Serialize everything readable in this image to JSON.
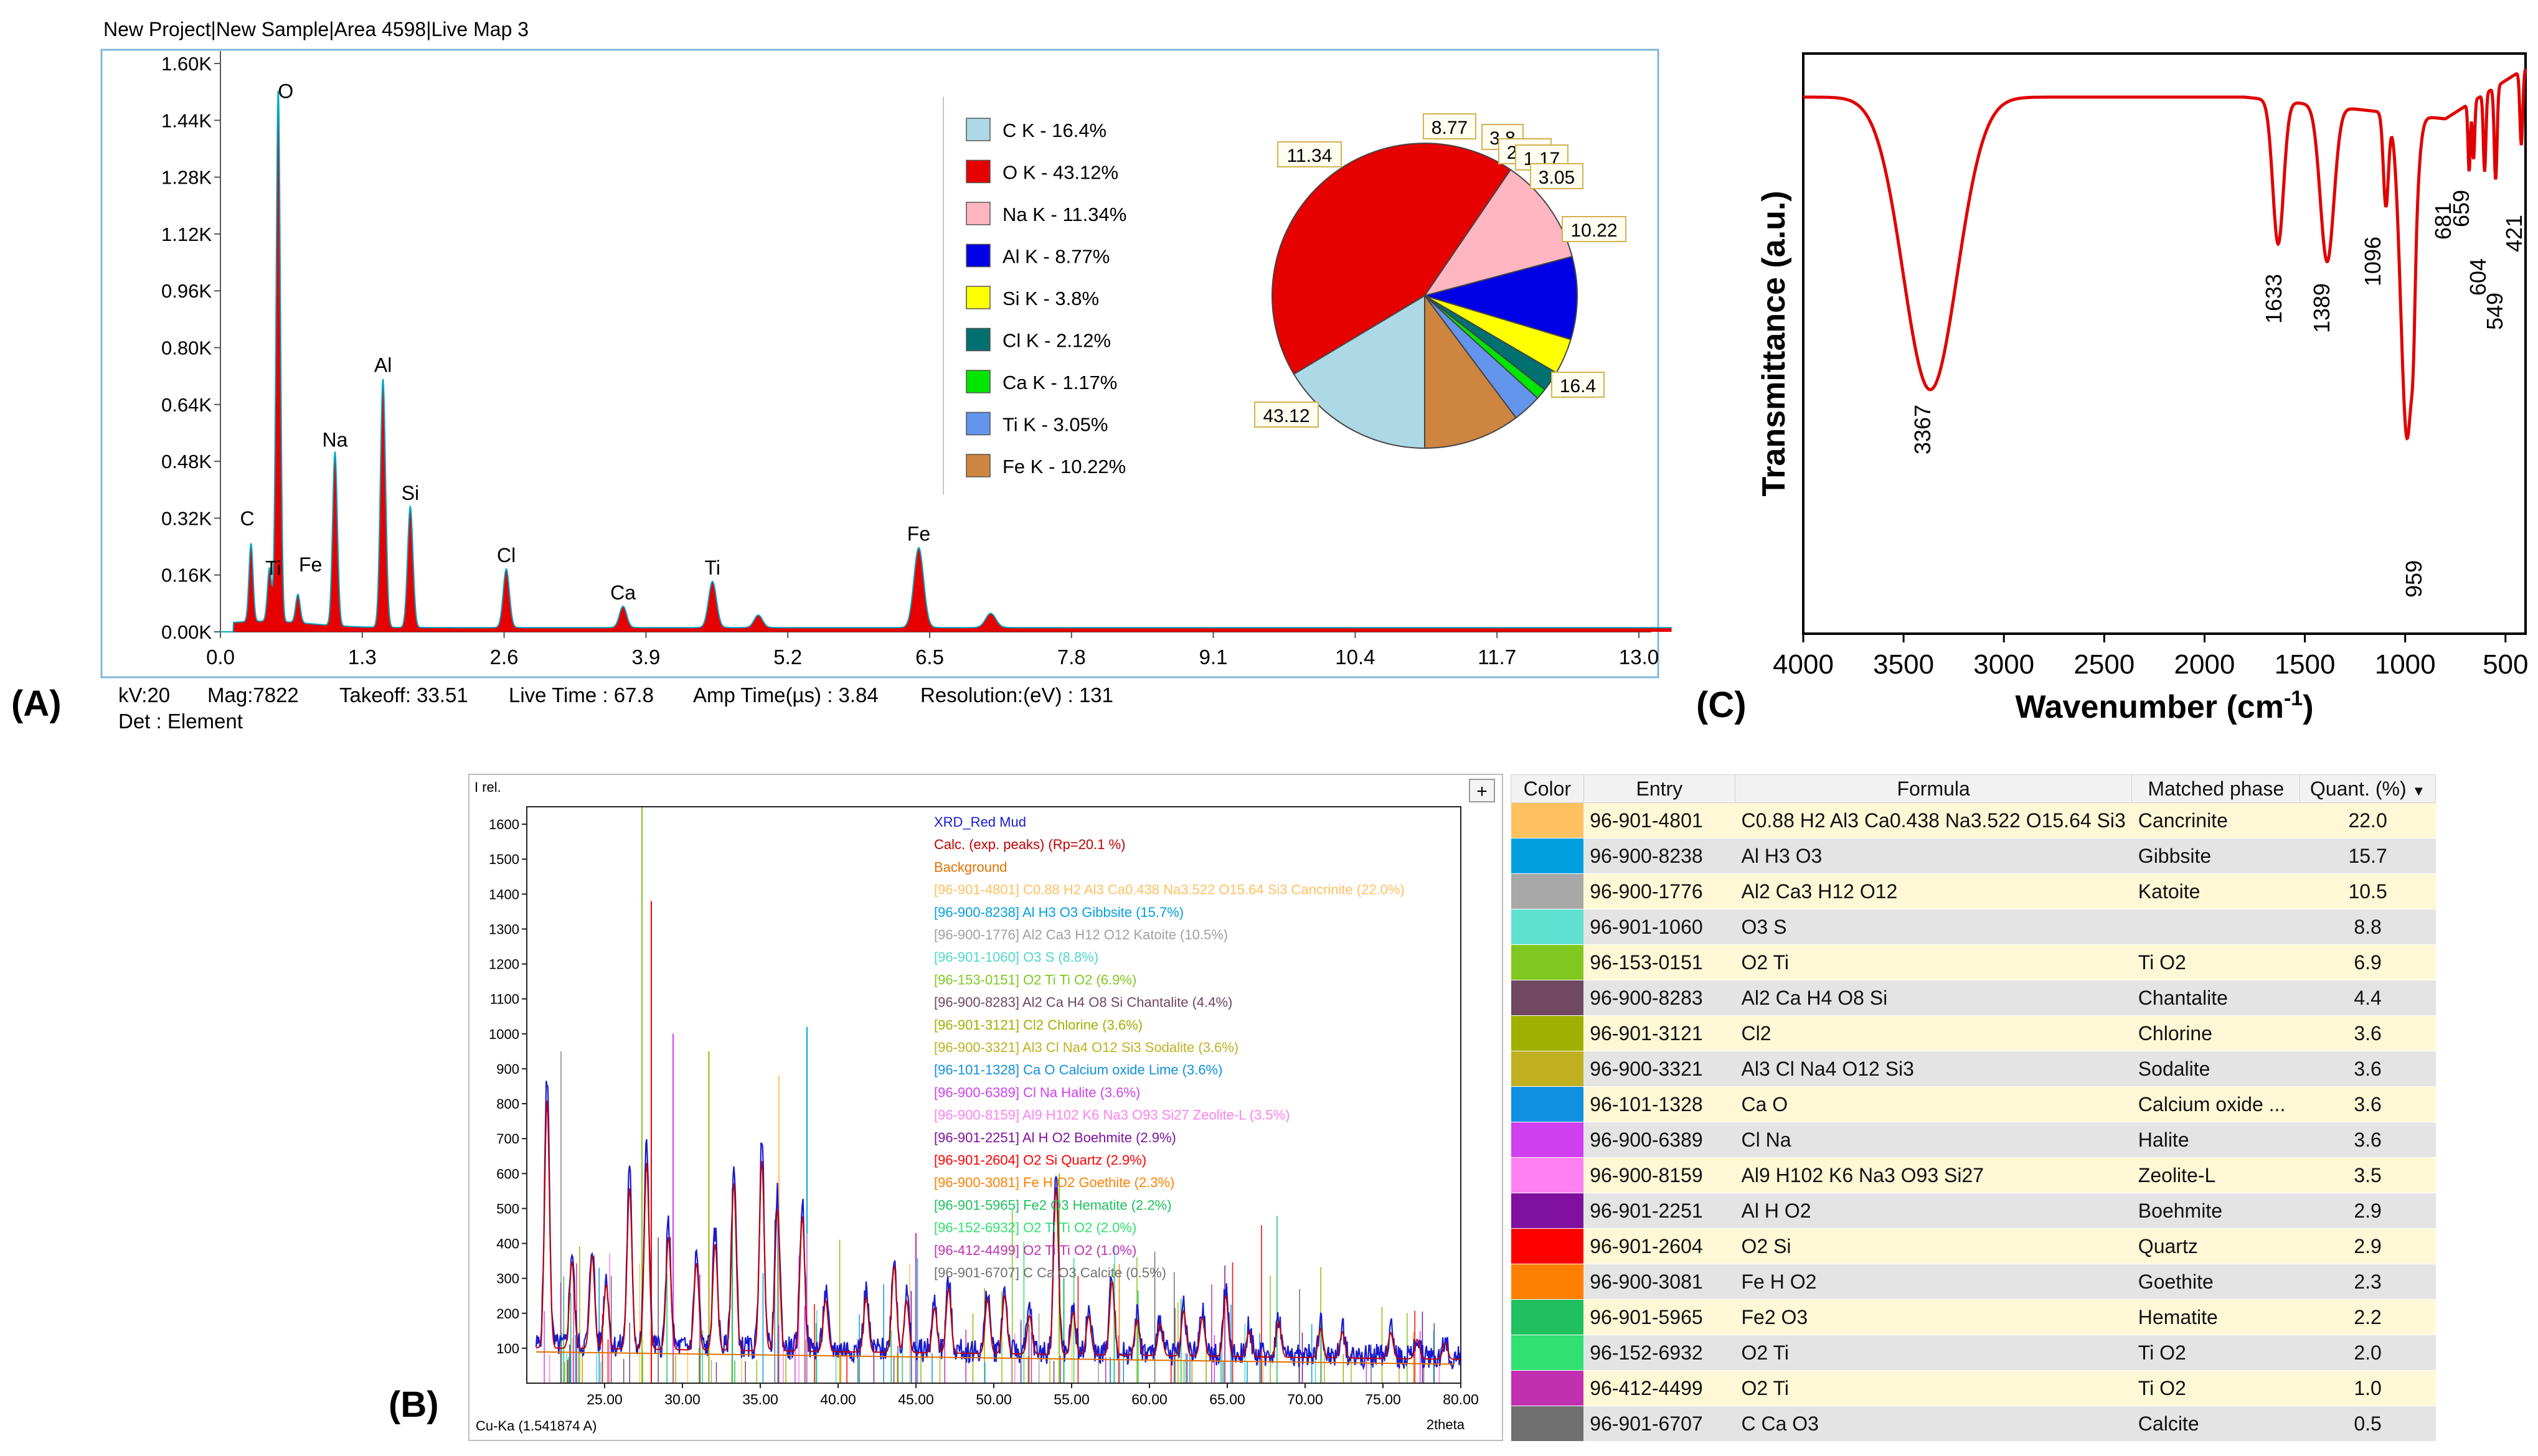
{
  "panels": {
    "a": "(A)",
    "b": "(B)",
    "c": "(C)"
  },
  "eds": {
    "header": "New Project|New Sample|Area 4598|Live Map 3",
    "info_line1": [
      "kV:20",
      "Mag:7822",
      "Takeoff: 33.51",
      "Live Time : 67.8",
      "Amp Time(µs) : 3.84",
      "Resolution:(eV) : 131"
    ],
    "info_line2": "Det : Element",
    "y_ticks": [
      "0.00K",
      "0.16K",
      "0.32K",
      "0.48K",
      "0.64K",
      "0.80K",
      "0.96K",
      "1.12K",
      "1.28K",
      "1.44K",
      "1.60K"
    ],
    "x_ticks": [
      "0.0",
      "1.3",
      "2.6",
      "3.9",
      "5.2",
      "6.5",
      "7.8",
      "9.1",
      "10.4",
      "11.7",
      "13.0"
    ],
    "pie_labels": [
      "16.4",
      "43.12",
      "11.34",
      "8.77",
      "3.8",
      "2.12",
      "1.17",
      "3.05",
      "10.22"
    ],
    "colors": {
      "peak_fill": "#e60000",
      "frame": "#7fb8d8",
      "trace": "#00a8c8"
    }
  },
  "chart_data": [
    {
      "type": "area",
      "title": "",
      "xlabel": "",
      "ylabel": "",
      "xlim": [
        0,
        13.3
      ],
      "ylim": [
        0,
        1600
      ],
      "peaks": [
        {
          "label": "C",
          "x": 0.28,
          "y": 220
        },
        {
          "label": "O",
          "x": 0.53,
          "y": 1500
        },
        {
          "label": "Ti",
          "x": 0.45,
          "y": 150
        },
        {
          "label": "Fe",
          "x": 0.71,
          "y": 80
        },
        {
          "label": "Na",
          "x": 1.05,
          "y": 490
        },
        {
          "label": "Al",
          "x": 1.49,
          "y": 700
        },
        {
          "label": "Si",
          "x": 1.74,
          "y": 340
        },
        {
          "label": "Cl",
          "x": 2.62,
          "y": 165
        },
        {
          "label": "Ca",
          "x": 3.69,
          "y": 60
        },
        {
          "label": "Ti",
          "x": 4.51,
          "y": 130
        },
        {
          "label": "Fe",
          "x": 6.4,
          "y": 225
        }
      ],
      "minor_peaks_unlabeled": [
        {
          "x": 4.93,
          "y": 35
        },
        {
          "x": 7.06,
          "y": 40
        }
      ]
    },
    {
      "type": "pie",
      "title": "",
      "legend_position": "left",
      "slices": [
        {
          "label": "C  K - 16.4%",
          "value": 16.4,
          "color": "#add8e6"
        },
        {
          "label": "O  K - 43.12%",
          "value": 43.12,
          "color": "#e60000"
        },
        {
          "label": "Na K - 11.34%",
          "value": 11.34,
          "color": "#ffb6c1"
        },
        {
          "label": "Al K - 8.77%",
          "value": 8.77,
          "color": "#0000e6"
        },
        {
          "label": "Si K - 3.8%",
          "value": 3.8,
          "color": "#ffff00"
        },
        {
          "label": "Cl K - 2.12%",
          "value": 2.12,
          "color": "#007070"
        },
        {
          "label": "Ca K - 1.17%",
          "value": 1.17,
          "color": "#00e600"
        },
        {
          "label": "Ti K - 3.05%",
          "value": 3.05,
          "color": "#6495ed"
        },
        {
          "label": "Fe K - 10.22%",
          "value": 10.22,
          "color": "#cd853f"
        }
      ]
    },
    {
      "type": "line",
      "title": "",
      "xlabel": "Wavenumber (cm",
      "xlabel_sup": "-1",
      "xlabel_end": ")",
      "ylabel": "Transmittance (a.u.)",
      "xlim": [
        4000,
        400
      ],
      "x_reversed": true,
      "x_ticks": [
        "4000",
        "3500",
        "3000",
        "2500",
        "2000",
        "1500",
        "1000",
        "500"
      ],
      "line_color": "#e00000",
      "bands": [
        {
          "label": "3367",
          "x": 3367
        },
        {
          "label": "1633",
          "x": 1633
        },
        {
          "label": "1389",
          "x": 1389
        },
        {
          "label": "1096",
          "x": 1096
        },
        {
          "label": "959",
          "x": 959
        },
        {
          "label": "681",
          "x": 681
        },
        {
          "label": "659",
          "x": 659
        },
        {
          "label": "604",
          "x": 604
        },
        {
          "label": "549",
          "x": 549
        },
        {
          "label": "421",
          "x": 421
        }
      ]
    },
    {
      "type": "line",
      "title": "",
      "ylabel": "I rel.",
      "xlabel": "2theta",
      "source": "Cu-Ka (1.541874 A)",
      "xlim": [
        20,
        80
      ],
      "ylim": [
        0,
        1650
      ],
      "x_ticks": [
        "25.00",
        "30.00",
        "35.00",
        "40.00",
        "45.00",
        "50.00",
        "55.00",
        "60.00",
        "65.00",
        "70.00",
        "75.00",
        "80.00"
      ],
      "y_ticks": [
        "100",
        "200",
        "300",
        "400",
        "500",
        "600",
        "700",
        "800",
        "900",
        "1000",
        "1100",
        "1200",
        "1300",
        "1400",
        "1500",
        "1600"
      ],
      "legend": [
        {
          "text": "XRD_Red Mud",
          "color": "#1a1ad0"
        },
        {
          "text": "Calc. (exp. peaks) (Rp=20.1 %)",
          "color": "#c00000"
        },
        {
          "text": "Background",
          "color": "#e07000"
        },
        {
          "text": "[96-901-4801] C0.88 H2 Al3 Ca0.438 Na3.522 O15.64 Si3  Cancrinite (22.0%)",
          "color": "#ffc060"
        },
        {
          "text": "[96-900-8238] Al H3 O3  Gibbsite (15.7%)",
          "color": "#00a0e0"
        },
        {
          "text": "[96-900-1776] Al2 Ca3 H12 O12  Katoite (10.5%)",
          "color": "#a0a0a0"
        },
        {
          "text": "[96-901-1060] O3 S  (8.8%)",
          "color": "#50d8c8"
        },
        {
          "text": "[96-153-0151] O2 Ti Ti O2 (6.9%)",
          "color": "#80c820"
        },
        {
          "text": "[96-900-8283] Al2 Ca H4 O8 Si  Chantalite (4.4%)",
          "color": "#704860"
        },
        {
          "text": "[96-901-3121] Cl2 Chlorine (3.6%)",
          "color": "#a0b000"
        },
        {
          "text": "[96-900-3321] Al3 Cl Na4 O12 Si3  Sodalite (3.6%)",
          "color": "#c0b020"
        },
        {
          "text": "[96-101-1328] Ca O  Calcium oxide Lime (3.6%)",
          "color": "#1090e0"
        },
        {
          "text": "[96-900-6389] Cl Na  Halite (3.6%)",
          "color": "#d040f0"
        },
        {
          "text": "[96-900-8159] Al9 H102 K6 Na3 O93 Si27  Zeolite-L (3.5%)",
          "color": "#ff80f0"
        },
        {
          "text": "[96-901-2251] Al H O2  Boehmite (2.9%)",
          "color": "#8010a0"
        },
        {
          "text": "[96-901-2604] O2 Si  Quartz (2.9%)",
          "color": "#ff0000"
        },
        {
          "text": "[96-900-3081] Fe H O2  Goethite (2.3%)",
          "color": "#ff8000"
        },
        {
          "text": "[96-901-5965] Fe2 O3  Hematite (2.2%)",
          "color": "#20c060"
        },
        {
          "text": "[96-152-6932] O2 Ti Ti O2 (2.0%)",
          "color": "#30e070"
        },
        {
          "text": "[96-412-4499] O2 Ti Ti O2 (1.0%)",
          "color": "#c030b0"
        },
        {
          "text": "[96-901-6707] C Ca O3  Calcite (0.5%)",
          "color": "#707070"
        }
      ],
      "plus_button": "+"
    },
    {
      "type": "table",
      "columns": [
        "Color",
        "Entry",
        "Formula",
        "Matched phase",
        "Quant. (%)"
      ],
      "sort_indicator": "▼",
      "rows": [
        {
          "color": "#ffc060",
          "entry": "96-901-4801",
          "formula": "C0.88 H2 Al3 Ca0.438 Na3.522 O15.64 Si3",
          "phase": "Cancrinite",
          "quant": "22.0"
        },
        {
          "color": "#00a0e0",
          "entry": "96-900-8238",
          "formula": "Al H3 O3",
          "phase": "Gibbsite",
          "quant": "15.7"
        },
        {
          "color": "#a8a8a8",
          "entry": "96-900-1776",
          "formula": "Al2 Ca3 H12 O12",
          "phase": "Katoite",
          "quant": "10.5"
        },
        {
          "color": "#60e0d0",
          "entry": "96-901-1060",
          "formula": "O3 S",
          "phase": "",
          "quant": "8.8"
        },
        {
          "color": "#80c820",
          "entry": "96-153-0151",
          "formula": "O2 Ti",
          "phase": "Ti O2",
          "quant": "6.9"
        },
        {
          "color": "#704860",
          "entry": "96-900-8283",
          "formula": "Al2 Ca H4 O8 Si",
          "phase": "Chantalite",
          "quant": "4.4"
        },
        {
          "color": "#a0b000",
          "entry": "96-901-3121",
          "formula": "Cl2",
          "phase": "Chlorine",
          "quant": "3.6"
        },
        {
          "color": "#c0b020",
          "entry": "96-900-3321",
          "formula": "Al3 Cl Na4 O12 Si3",
          "phase": "Sodalite",
          "quant": "3.6"
        },
        {
          "color": "#1090e0",
          "entry": "96-101-1328",
          "formula": "Ca O",
          "phase": "Calcium oxide ...",
          "quant": "3.6"
        },
        {
          "color": "#d040f0",
          "entry": "96-900-6389",
          "formula": "Cl Na",
          "phase": "Halite",
          "quant": "3.6"
        },
        {
          "color": "#ff80f0",
          "entry": "96-900-8159",
          "formula": "Al9 H102 K6 Na3 O93 Si27",
          "phase": "Zeolite-L",
          "quant": "3.5"
        },
        {
          "color": "#8010a0",
          "entry": "96-901-2251",
          "formula": "Al H O2",
          "phase": "Boehmite",
          "quant": "2.9"
        },
        {
          "color": "#ff0000",
          "entry": "96-901-2604",
          "formula": "O2 Si",
          "phase": "Quartz",
          "quant": "2.9"
        },
        {
          "color": "#ff8000",
          "entry": "96-900-3081",
          "formula": "Fe H O2",
          "phase": "Goethite",
          "quant": "2.3"
        },
        {
          "color": "#20c060",
          "entry": "96-901-5965",
          "formula": "Fe2 O3",
          "phase": "Hematite",
          "quant": "2.2"
        },
        {
          "color": "#30e070",
          "entry": "96-152-6932",
          "formula": "O2 Ti",
          "phase": "Ti O2",
          "quant": "2.0"
        },
        {
          "color": "#c030b0",
          "entry": "96-412-4499",
          "formula": "O2 Ti",
          "phase": "Ti O2",
          "quant": "1.0"
        },
        {
          "color": "#707070",
          "entry": "96-901-6707",
          "formula": "C Ca O3",
          "phase": "Calcite",
          "quant": "0.5"
        }
      ]
    }
  ]
}
